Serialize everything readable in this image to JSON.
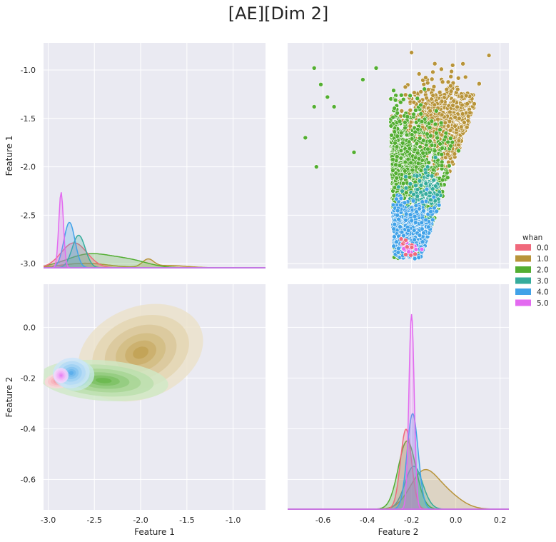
{
  "title": "[AE][Dim 2]",
  "chart_data": [
    {
      "panel": "top-left",
      "type": "area",
      "subtype": "kde-density",
      "ylabel": "Feature 1",
      "xlim": [
        -3.05,
        -0.65
      ],
      "ylim": [
        -3.05,
        -0.72
      ],
      "yticks": [
        "-1.0",
        "-1.5",
        "-2.0",
        "-2.5",
        "-3.0"
      ],
      "yticks_values": [
        -1.0,
        -1.5,
        -2.0,
        -2.5,
        -3.0
      ],
      "series": [
        {
          "name": "0.0",
          "mode": -2.72,
          "sd": 0.14,
          "peak": 0.33
        },
        {
          "name": "1.0",
          "components": [
            {
              "mode": -2.6,
              "sd": 0.25,
              "peak": 0.06
            },
            {
              "mode": -1.92,
              "sd": 0.06,
              "peak": 0.1
            },
            {
              "mode": -1.7,
              "sd": 0.2,
              "peak": 0.03
            }
          ]
        },
        {
          "name": "2.0",
          "components": [
            {
              "mode": -2.55,
              "sd": 0.25,
              "peak": 0.18
            },
            {
              "mode": -2.1,
              "sd": 0.2,
              "peak": 0.08
            }
          ]
        },
        {
          "name": "3.0",
          "mode": -2.67,
          "sd": 0.07,
          "peak": 0.43
        },
        {
          "name": "4.0",
          "mode": -2.77,
          "sd": 0.06,
          "peak": 0.6
        },
        {
          "name": "5.0",
          "mode": -2.86,
          "sd": 0.025,
          "peak": 1.0
        }
      ]
    },
    {
      "panel": "top-right",
      "type": "scatter",
      "xlim": [
        -0.76,
        0.24
      ],
      "ylim": [
        -3.05,
        -0.72
      ],
      "series": [
        {
          "name": "1.0",
          "center": [
            -0.06,
            -1.55
          ],
          "spread": [
            0.08,
            0.2
          ],
          "n": 900
        },
        {
          "name": "2.0",
          "center": [
            -0.23,
            -2.05
          ],
          "spread": [
            0.09,
            0.3
          ],
          "n": 1100
        },
        {
          "name": "3.0",
          "center": [
            -0.14,
            -2.3
          ],
          "spread": [
            0.04,
            0.12
          ],
          "n": 120
        },
        {
          "name": "4.0",
          "center": [
            -0.21,
            -2.65
          ],
          "spread": [
            0.07,
            0.15
          ],
          "n": 500
        },
        {
          "name": "5.0",
          "center": [
            -0.2,
            -2.85
          ],
          "spread": [
            0.02,
            0.03
          ],
          "n": 15
        },
        {
          "name": "0.0",
          "center": [
            -0.21,
            -2.85
          ],
          "spread": [
            0.02,
            0.05
          ],
          "n": 10
        }
      ],
      "outliers": [
        {
          "x": -0.68,
          "y": -1.7
        },
        {
          "x": -0.64,
          "y": -1.38
        },
        {
          "x": -0.61,
          "y": -1.15
        },
        {
          "x": -0.58,
          "y": -1.28
        },
        {
          "x": -0.55,
          "y": -1.38
        },
        {
          "x": -0.63,
          "y": -2.0
        },
        {
          "x": -0.46,
          "y": -1.85
        },
        {
          "x": -0.42,
          "y": -1.1
        },
        {
          "x": -0.36,
          "y": -0.98
        },
        {
          "x": -0.2,
          "y": -0.82
        },
        {
          "x": -0.64,
          "y": -0.98
        },
        {
          "x": 0.15,
          "y": -0.85
        }
      ]
    },
    {
      "panel": "bottom-left",
      "type": "heatmap",
      "subtype": "filled-kde-contours",
      "xlabel": "Feature 1",
      "ylabel": "Feature 2",
      "xlim": [
        -3.05,
        -0.65
      ],
      "ylim": [
        -0.72,
        0.17
      ],
      "xticks": [
        "-3.0",
        "-2.5",
        "-2.0",
        "-1.5",
        "-1.0"
      ],
      "xticks_values": [
        -3.0,
        -2.5,
        -2.0,
        -1.5,
        -1.0
      ],
      "yticks": [
        "0.0",
        "-0.2",
        "-0.4",
        "-0.6"
      ],
      "yticks_values": [
        0.0,
        -0.2,
        -0.4,
        -0.6
      ],
      "series": [
        {
          "name": "1.0",
          "center": [
            -2.0,
            -0.1
          ],
          "spread": [
            0.35,
            0.09
          ]
        },
        {
          "name": "2.0",
          "center": [
            -2.4,
            -0.21
          ],
          "spread": [
            0.35,
            0.04
          ]
        },
        {
          "name": "0.0",
          "center": [
            -2.88,
            -0.21
          ],
          "spread": [
            0.08,
            0.015
          ]
        },
        {
          "name": "3.0",
          "center": [
            -2.7,
            -0.19
          ],
          "spread": [
            0.1,
            0.03
          ]
        },
        {
          "name": "4.0",
          "center": [
            -2.75,
            -0.18
          ],
          "spread": [
            0.1,
            0.03
          ]
        },
        {
          "name": "5.0",
          "center": [
            -2.86,
            -0.19
          ],
          "spread": [
            0.04,
            0.015
          ]
        }
      ]
    },
    {
      "panel": "bottom-right",
      "type": "area",
      "subtype": "kde-density",
      "xlabel": "Feature 2",
      "xlim": [
        -0.76,
        0.24
      ],
      "ylim": [
        -0.72,
        0.17
      ],
      "xticks": [
        "-0.6",
        "-0.4",
        "-0.2",
        "0.0",
        "0.2"
      ],
      "xticks_values": [
        -0.6,
        -0.4,
        -0.2,
        0.0,
        0.2
      ],
      "series": [
        {
          "name": "0.0",
          "mode": -0.225,
          "sd": 0.025,
          "peak": 0.41
        },
        {
          "name": "1.0",
          "components": [
            {
              "mode": -0.15,
              "sd": 0.06,
              "peak": 0.17
            },
            {
              "mode": -0.05,
              "sd": 0.07,
              "peak": 0.08
            }
          ]
        },
        {
          "name": "2.0",
          "mode": -0.22,
          "sd": 0.04,
          "peak": 0.35
        },
        {
          "name": "3.0",
          "mode": -0.19,
          "sd": 0.04,
          "peak": 0.22
        },
        {
          "name": "4.0",
          "mode": -0.195,
          "sd": 0.025,
          "peak": 0.49
        },
        {
          "name": "5.0",
          "mode": -0.2,
          "sd": 0.012,
          "peak": 1.0
        }
      ]
    }
  ],
  "legend": {
    "title": "whan",
    "position": "right",
    "entries": [
      {
        "label": "0.0",
        "color": "#f0697c"
      },
      {
        "label": "1.0",
        "color": "#b8943a"
      },
      {
        "label": "2.0",
        "color": "#53ae32"
      },
      {
        "label": "3.0",
        "color": "#36ac9c"
      },
      {
        "label": "4.0",
        "color": "#41a2e8"
      },
      {
        "label": "5.0",
        "color": "#e36af0"
      }
    ]
  },
  "colors": {
    "panel_bg": "#eaeaf2",
    "grid": "#ffffff"
  }
}
